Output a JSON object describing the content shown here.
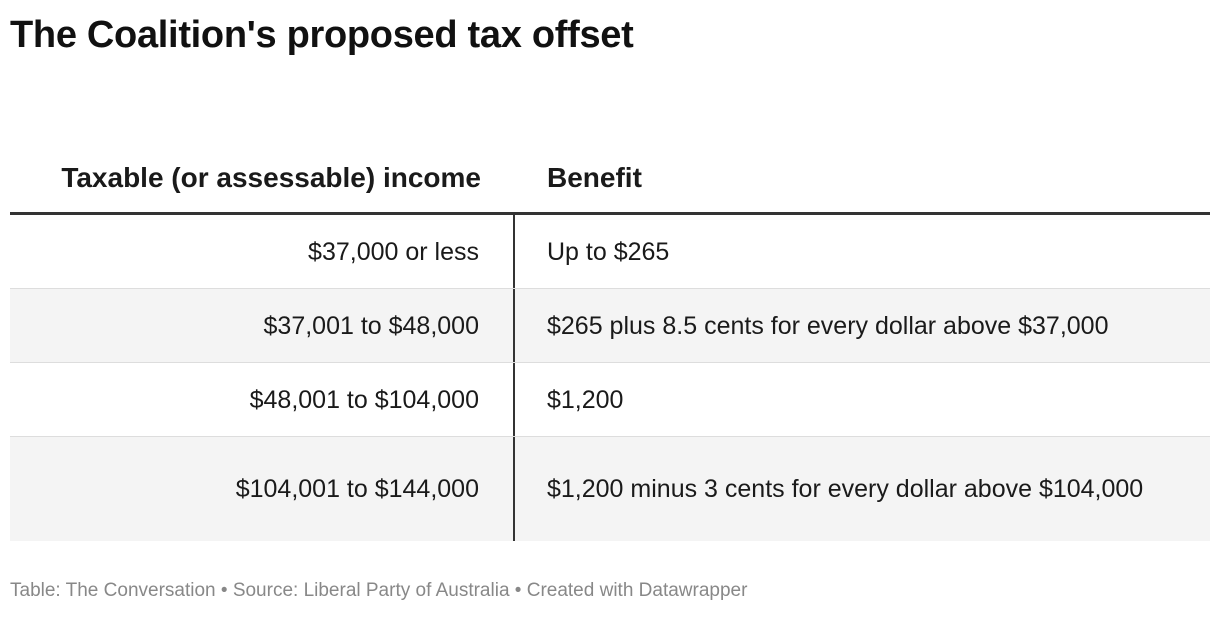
{
  "title": "The Coalition's proposed tax offset",
  "chart_data": {
    "type": "table",
    "columns": [
      "Taxable (or assessable) income",
      "Benefit"
    ],
    "rows": [
      [
        "$37,000 or less",
        "Up to $265"
      ],
      [
        "$37,001 to $48,000",
        "$265 plus 8.5 cents for every dollar above $37,000"
      ],
      [
        "$48,001 to $104,000",
        "$1,200"
      ],
      [
        "$104,001 to $144,000",
        "$1,200 minus 3 cents for every dollar above $104,000"
      ]
    ]
  },
  "footer": "Table: The Conversation • Source: Liberal Party of Australia • Created with Datawrapper"
}
